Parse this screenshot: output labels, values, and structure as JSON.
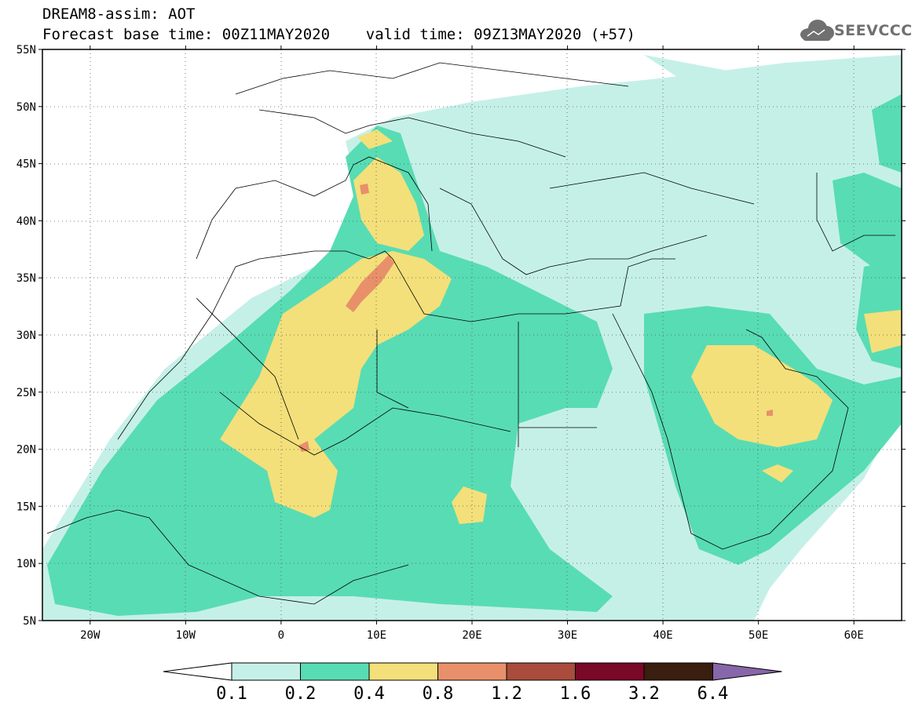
{
  "title": {
    "line1": "DREAM8-assim: AOT",
    "line2": "Forecast base time: 00Z11MAY2020    valid time: 09Z13MAY2020 (+57)"
  },
  "logo": {
    "text": "SEEVCCC",
    "icon": "cloud-icon",
    "color": "#707070"
  },
  "map": {
    "lon_range": [
      -25,
      65
    ],
    "lat_range": [
      5,
      55
    ],
    "lat_ticks": [
      {
        "value": 5,
        "label": "5N"
      },
      {
        "value": 10,
        "label": "10N"
      },
      {
        "value": 15,
        "label": "15N"
      },
      {
        "value": 20,
        "label": "20N"
      },
      {
        "value": 25,
        "label": "25N"
      },
      {
        "value": 30,
        "label": "30N"
      },
      {
        "value": 35,
        "label": "35N"
      },
      {
        "value": 40,
        "label": "40N"
      },
      {
        "value": 45,
        "label": "45N"
      },
      {
        "value": 50,
        "label": "50N"
      },
      {
        "value": 55,
        "label": "55N"
      }
    ],
    "lon_ticks": [
      {
        "value": -20,
        "label": "20W"
      },
      {
        "value": -10,
        "label": "10W"
      },
      {
        "value": 0,
        "label": "0"
      },
      {
        "value": 10,
        "label": "10E"
      },
      {
        "value": 20,
        "label": "20E"
      },
      {
        "value": 30,
        "label": "30E"
      },
      {
        "value": 40,
        "label": "40E"
      },
      {
        "value": 50,
        "label": "50E"
      },
      {
        "value": 60,
        "label": "60E"
      }
    ],
    "grid": "dotted"
  },
  "colorbar": {
    "labels": [
      "0.1",
      "0.2",
      "0.4",
      "0.8",
      "1.2",
      "1.6",
      "3.2",
      "6.4"
    ],
    "colors": [
      "#c5f0e8",
      "#58dcb4",
      "#f3e07a",
      "#e8906a",
      "#a94c3c",
      "#7a0828",
      "#3a1e10",
      "#8866aa"
    ],
    "under_color": "#ffffff"
  }
}
